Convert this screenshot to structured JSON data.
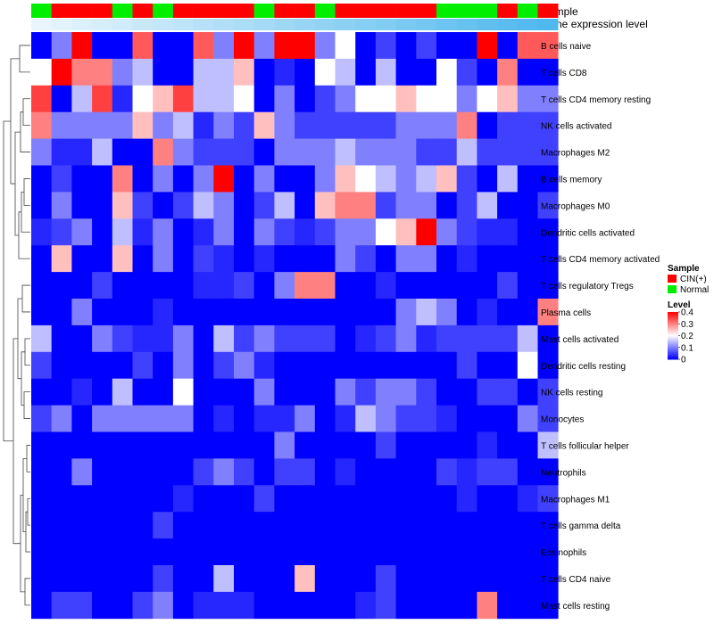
{
  "chart_data": {
    "type": "heatmap",
    "title": "",
    "annotation_tracks": [
      {
        "name": "Sample",
        "label": "Sample"
      },
      {
        "name": "Gene expression level",
        "label": "Gene expression level"
      }
    ],
    "sample_groups": [
      "N",
      "C",
      "C",
      "C",
      "N",
      "C",
      "N",
      "C",
      "C",
      "C",
      "C",
      "N",
      "C",
      "C",
      "N",
      "C",
      "C",
      "C",
      "C",
      "C",
      "N",
      "N",
      "N",
      "C",
      "N",
      "C"
    ],
    "sample_group_colors": {
      "C": "#ff0000",
      "N": "#00ee00"
    },
    "expression_gradient": [
      "#e8f5fc",
      "#4fb8ee"
    ],
    "rows": [
      "B cells naive",
      "T cells CD8",
      "T cells CD4 memory resting",
      "NK cells activated",
      "Macrophages M2",
      "B cells memory",
      "Macrophages M0",
      "Dendritic cells activated",
      "T cells CD4 memory activated",
      "T cells regulatory  Tregs",
      "Plasma cells",
      "Mast cells activated",
      "Dendritic cells resting",
      "NK cells resting",
      "Monocytes",
      "T cells follicular helper",
      "Neutrophils",
      "Macrophages M1",
      "T cells gamma delta",
      "Eosinophils",
      "T cells CD4 naive",
      "Mast cells resting"
    ],
    "values": [
      [
        0.0,
        0.1,
        0.42,
        0.0,
        0.0,
        0.33,
        0.0,
        0.0,
        0.33,
        0.1,
        0.42,
        0.1,
        0.42,
        0.42,
        0.1,
        0.2,
        0.0,
        0.05,
        0.0,
        0.05,
        0.0,
        0.0,
        0.42,
        0.0,
        0.33,
        0.33
      ],
      [
        0.2,
        0.42,
        0.3,
        0.3,
        0.1,
        0.15,
        0.0,
        0.0,
        0.15,
        0.15,
        0.25,
        0.0,
        0.03,
        0.0,
        0.2,
        0.15,
        0.0,
        0.15,
        0.0,
        0.0,
        0.2,
        0.05,
        0.0,
        0.3,
        0.0,
        0.0
      ],
      [
        0.35,
        0.0,
        0.15,
        0.35,
        0.03,
        0.2,
        0.25,
        0.35,
        0.15,
        0.15,
        0.2,
        0.0,
        0.1,
        0.0,
        0.05,
        0.1,
        0.2,
        0.2,
        0.25,
        0.2,
        0.2,
        0.1,
        0.2,
        0.25,
        0.1,
        0.1
      ],
      [
        0.3,
        0.1,
        0.1,
        0.1,
        0.1,
        0.25,
        0.1,
        0.15,
        0.03,
        0.1,
        0.05,
        0.25,
        0.1,
        0.05,
        0.05,
        0.05,
        0.05,
        0.05,
        0.1,
        0.1,
        0.1,
        0.3,
        0.0,
        0.05,
        0.05,
        0.05
      ],
      [
        0.1,
        0.03,
        0.03,
        0.15,
        0.0,
        0.0,
        0.3,
        0.1,
        0.05,
        0.05,
        0.05,
        0.0,
        0.1,
        0.1,
        0.1,
        0.15,
        0.1,
        0.1,
        0.1,
        0.05,
        0.05,
        0.15,
        0.05,
        0.05,
        0.05,
        0.05
      ],
      [
        0.0,
        0.05,
        0.0,
        0.0,
        0.3,
        0.0,
        0.1,
        0.0,
        0.1,
        0.4,
        0.0,
        0.1,
        0.0,
        0.0,
        0.1,
        0.25,
        0.2,
        0.15,
        0.1,
        0.15,
        0.25,
        0.05,
        0.0,
        0.15,
        0.0,
        0.0
      ],
      [
        0.0,
        0.1,
        0.0,
        0.0,
        0.25,
        0.05,
        0.0,
        0.05,
        0.15,
        0.1,
        0.0,
        0.05,
        0.15,
        0.0,
        0.25,
        0.3,
        0.3,
        0.05,
        0.1,
        0.1,
        0.0,
        0.05,
        0.15,
        0.0,
        0.0,
        0.05
      ],
      [
        0.03,
        0.05,
        0.1,
        0.0,
        0.15,
        0.03,
        0.1,
        0.0,
        0.03,
        0.1,
        0.0,
        0.1,
        0.05,
        0.03,
        0.05,
        0.1,
        0.1,
        0.2,
        0.25,
        0.42,
        0.1,
        0.05,
        0.03,
        0.03,
        0.0,
        0.0
      ],
      [
        0.0,
        0.25,
        0.0,
        0.0,
        0.25,
        0.0,
        0.1,
        0.0,
        0.05,
        0.03,
        0.0,
        0.03,
        0.0,
        0.0,
        0.0,
        0.1,
        0.05,
        0.0,
        0.1,
        0.1,
        0.0,
        0.03,
        0.0,
        0.0,
        0.0,
        0.0
      ],
      [
        0.0,
        0.0,
        0.0,
        0.05,
        0.0,
        0.0,
        0.0,
        0.0,
        0.03,
        0.03,
        0.05,
        0.0,
        0.1,
        0.3,
        0.3,
        0.0,
        0.0,
        0.03,
        0.0,
        0.0,
        0.0,
        0.0,
        0.0,
        0.05,
        0.0,
        0.0
      ],
      [
        0.0,
        0.0,
        0.1,
        0.0,
        0.0,
        0.0,
        0.03,
        0.0,
        0.0,
        0.0,
        0.0,
        0.0,
        0.0,
        0.0,
        0.0,
        0.0,
        0.0,
        0.0,
        0.1,
        0.15,
        0.1,
        0.0,
        0.03,
        0.0,
        0.0,
        0.3
      ],
      [
        0.15,
        0.0,
        0.0,
        0.1,
        0.05,
        0.03,
        0.03,
        0.1,
        0.0,
        0.15,
        0.05,
        0.1,
        0.05,
        0.05,
        0.05,
        0.0,
        0.03,
        0.05,
        0.1,
        0.03,
        0.05,
        0.05,
        0.05,
        0.05,
        0.15,
        0.0
      ],
      [
        0.05,
        0.0,
        0.0,
        0.0,
        0.0,
        0.05,
        0.0,
        0.1,
        0.0,
        0.05,
        0.1,
        0.03,
        0.0,
        0.0,
        0.0,
        0.0,
        0.0,
        0.0,
        0.0,
        0.0,
        0.0,
        0.05,
        0.0,
        0.0,
        0.2,
        0.0
      ],
      [
        0.0,
        0.0,
        0.03,
        0.0,
        0.15,
        0.0,
        0.0,
        0.2,
        0.0,
        0.0,
        0.0,
        0.1,
        0.0,
        0.0,
        0.0,
        0.1,
        0.05,
        0.1,
        0.1,
        0.05,
        0.0,
        0.0,
        0.05,
        0.05,
        0.0,
        0.05
      ],
      [
        0.05,
        0.1,
        0.0,
        0.1,
        0.1,
        0.1,
        0.1,
        0.1,
        0.0,
        0.03,
        0.0,
        0.03,
        0.03,
        0.1,
        0.0,
        0.03,
        0.15,
        0.1,
        0.05,
        0.05,
        0.03,
        0.0,
        0.0,
        0.0,
        0.1,
        0.05
      ],
      [
        0.0,
        0.0,
        0.0,
        0.0,
        0.0,
        0.0,
        0.0,
        0.0,
        0.0,
        0.0,
        0.0,
        0.0,
        0.1,
        0.0,
        0.0,
        0.0,
        0.0,
        0.05,
        0.0,
        0.0,
        0.0,
        0.0,
        0.03,
        0.0,
        0.0,
        0.15
      ],
      [
        0.0,
        0.0,
        0.1,
        0.0,
        0.0,
        0.0,
        0.0,
        0.0,
        0.05,
        0.1,
        0.05,
        0.0,
        0.05,
        0.05,
        0.0,
        0.03,
        0.0,
        0.0,
        0.0,
        0.0,
        0.05,
        0.03,
        0.05,
        0.05,
        0.0,
        0.0
      ],
      [
        0.0,
        0.0,
        0.0,
        0.0,
        0.0,
        0.0,
        0.0,
        0.03,
        0.0,
        0.0,
        0.0,
        0.05,
        0.0,
        0.0,
        0.0,
        0.0,
        0.0,
        0.0,
        0.0,
        0.0,
        0.0,
        0.03,
        0.0,
        0.0,
        0.03,
        0.05
      ],
      [
        0.0,
        0.0,
        0.0,
        0.0,
        0.0,
        0.0,
        0.05,
        0.0,
        0.0,
        0.0,
        0.0,
        0.0,
        0.0,
        0.0,
        0.0,
        0.0,
        0.0,
        0.0,
        0.0,
        0.0,
        0.0,
        0.0,
        0.0,
        0.0,
        0.0,
        0.0
      ],
      [
        0.0,
        0.0,
        0.0,
        0.0,
        0.0,
        0.0,
        0.0,
        0.0,
        0.0,
        0.0,
        0.0,
        0.0,
        0.0,
        0.0,
        0.0,
        0.0,
        0.0,
        0.0,
        0.0,
        0.0,
        0.0,
        0.0,
        0.0,
        0.0,
        0.0,
        0.0
      ],
      [
        0.0,
        0.0,
        0.0,
        0.0,
        0.0,
        0.0,
        0.05,
        0.0,
        0.0,
        0.15,
        0.0,
        0.0,
        0.0,
        0.25,
        0.0,
        0.0,
        0.0,
        0.05,
        0.0,
        0.0,
        0.0,
        0.0,
        0.0,
        0.0,
        0.0,
        0.0
      ],
      [
        0.0,
        0.05,
        0.05,
        0.0,
        0.0,
        0.05,
        0.1,
        0.0,
        0.03,
        0.03,
        0.03,
        0.0,
        0.0,
        0.0,
        0.0,
        0.0,
        0.03,
        0.05,
        0.0,
        0.0,
        0.0,
        0.0,
        0.3,
        0.0,
        0.0,
        0.0
      ]
    ],
    "legend": {
      "sample_title": "Sample",
      "sample_entries": [
        {
          "key": "C",
          "label": "CIN(+)"
        },
        {
          "key": "N",
          "label": "Normal"
        }
      ],
      "level_title": "Level",
      "level_range": [
        0,
        0.4
      ],
      "level_ticks": [
        {
          "value": 0.4,
          "label": "0.4"
        },
        {
          "value": 0.3,
          "label": "0.3"
        },
        {
          "value": 0.2,
          "label": "0.2"
        },
        {
          "value": 0.1,
          "label": "0.1"
        },
        {
          "value": 0,
          "label": "0"
        }
      ]
    },
    "color_scale": {
      "domain": [
        0,
        0.2,
        0.4
      ],
      "colors": [
        "#0000ff",
        "#ffffff",
        "#ff0000"
      ]
    }
  }
}
